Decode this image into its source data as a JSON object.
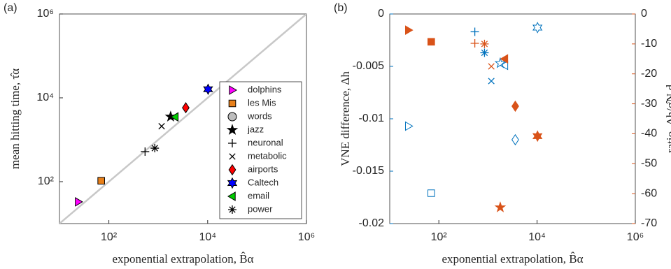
{
  "chart_data": [
    {
      "type": "scatter",
      "panel_label": "(a)",
      "x_label": "exponential extrapolation, B̂α",
      "y_label": "mean hitting time, τ̂α",
      "log_x": true,
      "log_y": true,
      "reference_line": "y = x",
      "reference_color": "#c8c8c8",
      "xlim": [
        10,
        1000000
      ],
      "ylim": [
        10,
        1000000
      ],
      "xticks": [
        {
          "value": 100,
          "label": "10²"
        },
        {
          "value": 10000,
          "label": "10⁴"
        },
        {
          "value": 1000000,
          "label": "10⁶"
        }
      ],
      "yticks": [
        {
          "value": 100,
          "label": "10²"
        },
        {
          "value": 10000,
          "label": "10⁴"
        },
        {
          "value": 1000000,
          "label": "10⁶"
        }
      ],
      "legend": "lower right",
      "series": [
        {
          "name": "dolphins",
          "marker": "triangle-right",
          "color": "#ff00ff",
          "x": [
            24
          ],
          "values": [
            33
          ]
        },
        {
          "name": "les Mis",
          "marker": "square",
          "color": "#e8801a",
          "x": [
            70
          ],
          "values": [
            105
          ]
        },
        {
          "name": "words",
          "marker": "circle",
          "color": "#bdbdbd",
          "x": [
            null
          ],
          "values": [
            null
          ]
        },
        {
          "name": "jazz",
          "marker": "star",
          "color": "#000000",
          "x": [
            1780
          ],
          "values": [
            3550
          ]
        },
        {
          "name": "neuronal",
          "marker": "plus",
          "color": "#000000",
          "x": [
            540
          ],
          "values": [
            520
          ]
        },
        {
          "name": "metabolic",
          "marker": "cross",
          "color": "#000000",
          "x": [
            1170
          ],
          "values": [
            2100
          ]
        },
        {
          "name": "airports",
          "marker": "diamond",
          "color": "#ff0000",
          "x": [
            3600
          ],
          "values": [
            5800
          ]
        },
        {
          "name": "Caltech",
          "marker": "hexagram",
          "color": "#0000ff",
          "x": [
            10200
          ],
          "values": [
            16000
          ]
        },
        {
          "name": "email",
          "marker": "triangle-left",
          "color": "#00cc00",
          "x": [
            2200
          ],
          "values": [
            3500
          ]
        },
        {
          "name": "power",
          "marker": "asterisk",
          "color": "#000000",
          "x": [
            850
          ],
          "values": [
            630
          ]
        }
      ]
    },
    {
      "type": "scatter",
      "panel_label": "(b)",
      "x_label": "exponential extrapolation, B̂α",
      "y_label": "VNE difference, Δh",
      "y2_label": "ratio, Δh/σ̂N,d",
      "log_x": true,
      "xlim": [
        10,
        1000000
      ],
      "ylim": [
        -0.02,
        0
      ],
      "y2lim": [
        -70,
        0
      ],
      "xticks": [
        {
          "value": 100,
          "label": "10²"
        },
        {
          "value": 10000,
          "label": "10⁴"
        },
        {
          "value": 1000000,
          "label": "10⁶"
        }
      ],
      "yticks": [
        0,
        -0.005,
        -0.01,
        -0.015,
        -0.02
      ],
      "y2ticks": [
        0,
        -10,
        -20,
        -30,
        -40,
        -50,
        -60,
        -70
      ],
      "x": [
        24,
        70,
        null,
        1780,
        540,
        1170,
        3600,
        10200,
        2200,
        850
      ],
      "markers": [
        "triangle-right",
        "square",
        "circle",
        "star",
        "plus",
        "cross",
        "diamond",
        "hexagram",
        "triangle-left",
        "asterisk"
      ],
      "series": [
        {
          "axis": "y",
          "color": "#0072bd",
          "filled": false,
          "values": [
            -0.0107,
            -0.0171,
            null,
            -0.0047,
            -0.0017,
            -0.0064,
            -0.012,
            -0.0013,
            -0.0049,
            -0.0037
          ]
        },
        {
          "axis": "y2",
          "color": "#d95319",
          "filled": true,
          "values": [
            -5.4,
            -9.3,
            null,
            -64.6,
            -9.8,
            -17.5,
            -30.8,
            -40.8,
            -15,
            -10
          ]
        }
      ]
    }
  ]
}
